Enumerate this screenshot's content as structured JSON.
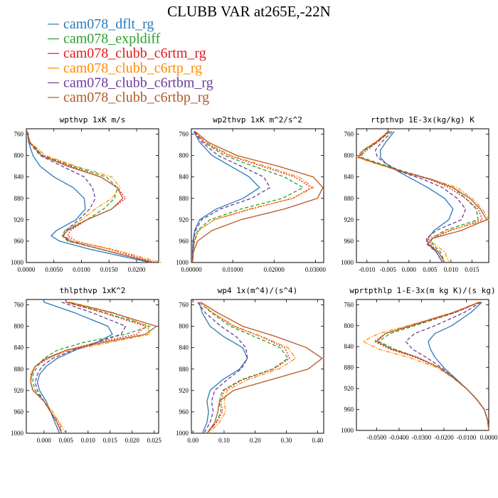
{
  "figure": {
    "title": "CLUBB VAR at265E,-22N",
    "legend": [
      {
        "label": "cam078_dflt_rg",
        "color": "#2b7bb9",
        "dash": "solid"
      },
      {
        "label": "cam078_expldiff",
        "color": "#2ca02c",
        "dash": "dash"
      },
      {
        "label": "cam078_clubb_c6rtm_rg",
        "color": "#e3191b",
        "dash": "dot"
      },
      {
        "label": "cam078_clubb_c6rtp_rg",
        "color": "#ff8c00",
        "dash": "dashdot"
      },
      {
        "label": "cam078_clubb_c6rtbm_rg",
        "color": "#6a3d9a",
        "dash": "dash"
      },
      {
        "label": "cam078_clubb_c6rtbp_rg",
        "color": "#b15928",
        "dash": "solid"
      }
    ]
  },
  "chart_data": [
    {
      "type": "line",
      "title": "wpthvp  1xK m/s",
      "xlim": [
        0,
        0.024
      ],
      "ylim": [
        1000,
        750
      ],
      "xticks": [
        "0.0000",
        "0.0050",
        "0.0100",
        "0.0150",
        "0.0200"
      ],
      "xtick_values": [
        0,
        0.005,
        0.01,
        0.015,
        0.02
      ],
      "yticks": [
        760,
        800,
        840,
        880,
        920,
        960,
        1000
      ],
      "y": [
        755,
        775,
        800,
        820,
        840,
        860,
        880,
        900,
        920,
        940,
        950,
        960,
        975,
        1000
      ],
      "series": [
        {
          "values": [
            0.0002,
            0.0004,
            0.0012,
            0.0025,
            0.005,
            0.0085,
            0.0105,
            0.0107,
            0.009,
            0.0055,
            0.0045,
            0.006,
            0.0115,
            0.0225
          ]
        },
        {
          "values": [
            0.0002,
            0.0006,
            0.003,
            0.0085,
            0.0145,
            0.0165,
            0.016,
            0.014,
            0.011,
            0.007,
            0.0065,
            0.0075,
            0.0135,
            0.023
          ]
        },
        {
          "values": [
            0.0002,
            0.0006,
            0.0028,
            0.008,
            0.0135,
            0.0165,
            0.018,
            0.0155,
            0.011,
            0.008,
            0.0075,
            0.009,
            0.015,
            0.0235
          ]
        },
        {
          "values": [
            0.0002,
            0.0007,
            0.0035,
            0.009,
            0.0155,
            0.017,
            0.0155,
            0.0125,
            0.01,
            0.0075,
            0.0065,
            0.0085,
            0.0155,
            0.0245
          ]
        },
        {
          "values": [
            0.0002,
            0.0005,
            0.0025,
            0.0065,
            0.0105,
            0.012,
            0.0125,
            0.0115,
            0.0095,
            0.0072,
            0.0068,
            0.008,
            0.0135,
            0.0228
          ]
        },
        {
          "values": [
            0.0002,
            0.0006,
            0.0028,
            0.0075,
            0.0135,
            0.0165,
            0.0175,
            0.0155,
            0.011,
            0.0075,
            0.0066,
            0.0078,
            0.0135,
            0.023
          ]
        }
      ]
    },
    {
      "type": "line",
      "title": "wp2thvp  1xK m^2/s^2",
      "xlim": [
        0,
        0.032
      ],
      "ylim": [
        1000,
        750
      ],
      "xticks": [
        "0.00000",
        "0.01000",
        "0.02000",
        "0.03000"
      ],
      "xtick_values": [
        0,
        0.01,
        0.02,
        0.03
      ],
      "yticks": [
        760,
        800,
        840,
        880,
        920,
        960,
        1000
      ],
      "y": [
        755,
        775,
        800,
        820,
        840,
        860,
        880,
        900,
        920,
        940,
        960,
        980,
        1000
      ],
      "series": [
        {
          "values": [
            0.0006,
            0.002,
            0.005,
            0.0095,
            0.014,
            0.0165,
            0.0125,
            0.006,
            0.002,
            0.0008,
            0.0004,
            0.0003,
            0.0003
          ]
        },
        {
          "values": [
            0.0008,
            0.003,
            0.008,
            0.015,
            0.0225,
            0.027,
            0.022,
            0.012,
            0.0045,
            0.0015,
            0.0007,
            0.0004,
            0.0003
          ]
        },
        {
          "values": [
            0.0008,
            0.003,
            0.009,
            0.017,
            0.025,
            0.029,
            0.0245,
            0.0145,
            0.0055,
            0.0018,
            0.0008,
            0.0004,
            0.0003
          ]
        },
        {
          "values": [
            0.0009,
            0.0035,
            0.0095,
            0.018,
            0.026,
            0.0295,
            0.0245,
            0.014,
            0.0055,
            0.0018,
            0.0008,
            0.0004,
            0.0003
          ]
        },
        {
          "values": [
            0.0007,
            0.0025,
            0.0065,
            0.012,
            0.0175,
            0.019,
            0.0145,
            0.007,
            0.0025,
            0.001,
            0.0005,
            0.0003,
            0.0003
          ]
        },
        {
          "values": [
            0.0009,
            0.004,
            0.011,
            0.021,
            0.0295,
            0.0318,
            0.0305,
            0.0225,
            0.012,
            0.005,
            0.0015,
            0.0005,
            0.0003
          ]
        }
      ]
    },
    {
      "type": "line",
      "title": "rtpthvp  1E-3x(kg/kg) K",
      "xlim": [
        -0.0125,
        0.019
      ],
      "ylim": [
        1000,
        750
      ],
      "xticks": [
        "-0.010",
        "-0.005",
        "0.000",
        "0.005",
        "0.010",
        "0.015"
      ],
      "xtick_values": [
        -0.01,
        -0.005,
        0,
        0.005,
        0.01,
        0.015
      ],
      "yticks": [
        760,
        800,
        840,
        880,
        920,
        960,
        1000
      ],
      "y": [
        755,
        775,
        790,
        803,
        815,
        830,
        845,
        860,
        880,
        900,
        920,
        940,
        955,
        965,
        980,
        1000
      ],
      "series": [
        {
          "values": [
            -0.0035,
            -0.0055,
            -0.0068,
            -0.0068,
            -0.0055,
            -0.0025,
            0.001,
            0.0045,
            0.0085,
            0.0105,
            0.0095,
            0.006,
            0.0045,
            0.0045,
            0.0065,
            0.008
          ]
        },
        {
          "values": [
            -0.0045,
            -0.0075,
            -0.0105,
            -0.0115,
            -0.007,
            -0.001,
            0.0055,
            0.0105,
            0.0135,
            0.016,
            0.0165,
            0.0085,
            0.0055,
            0.0055,
            0.0075,
            0.0085
          ]
        },
        {
          "values": [
            -0.0045,
            -0.0075,
            -0.01,
            -0.012,
            -0.0075,
            -0.002,
            0.005,
            0.0095,
            0.0135,
            0.0165,
            0.0175,
            0.01,
            0.0055,
            0.005,
            0.007,
            0.0085
          ]
        },
        {
          "values": [
            -0.005,
            -0.008,
            -0.011,
            -0.0125,
            -0.008,
            -0.0015,
            0.0055,
            0.0115,
            0.015,
            0.0175,
            0.019,
            0.0095,
            0.0045,
            0.006,
            0.0085,
            0.0095
          ]
        },
        {
          "values": [
            -0.004,
            -0.0065,
            -0.008,
            -0.0075,
            -0.0055,
            -0.002,
            0.0035,
            0.008,
            0.0115,
            0.0135,
            0.0125,
            0.0065,
            0.0042,
            0.0042,
            0.0065,
            0.008
          ]
        },
        {
          "values": [
            -0.0048,
            -0.0078,
            -0.0108,
            -0.012,
            -0.0075,
            -0.0015,
            0.0055,
            0.0105,
            0.0145,
            0.017,
            0.0185,
            0.0125,
            0.0055,
            0.0045,
            0.007,
            0.0085
          ]
        }
      ]
    },
    {
      "type": "line",
      "title": "thlpthvp  1xK^2",
      "xlim": [
        -0.004,
        0.026
      ],
      "ylim": [
        1000,
        750
      ],
      "xticks": [
        "0.000",
        "0.005",
        "0.010",
        "0.015",
        "0.020",
        "0.025"
      ],
      "xtick_values": [
        0,
        0.005,
        0.01,
        0.015,
        0.02,
        0.025
      ],
      "yticks": [
        760,
        800,
        840,
        880,
        920,
        960,
        1000
      ],
      "y": [
        755,
        775,
        800,
        815,
        830,
        845,
        860,
        875,
        890,
        905,
        920,
        940,
        960,
        980,
        1000
      ],
      "series": [
        {
          "values": [
            0.0,
            0.007,
            0.0145,
            0.0155,
            0.012,
            0.007,
            0.003,
            0.0005,
            -0.001,
            -0.0015,
            -0.001,
            0.0005,
            0.0015,
            0.0025,
            0.0035
          ]
        },
        {
          "values": [
            0.005,
            0.014,
            0.024,
            0.0185,
            0.009,
            0.003,
            0.0,
            -0.0015,
            -0.0025,
            -0.0025,
            -0.002,
            0.0,
            0.0015,
            0.003,
            0.004
          ]
        },
        {
          "values": [
            0.005,
            0.0135,
            0.023,
            0.021,
            0.012,
            0.005,
            0.001,
            -0.002,
            -0.003,
            -0.003,
            -0.0025,
            0.0,
            0.0015,
            0.0035,
            0.004
          ]
        },
        {
          "values": [
            0.006,
            0.016,
            0.0235,
            0.024,
            0.015,
            0.006,
            0.0005,
            -0.002,
            -0.003,
            -0.003,
            -0.0025,
            0.0,
            0.002,
            0.0035,
            0.005
          ]
        },
        {
          "values": [
            0.004,
            0.011,
            0.0185,
            0.0175,
            0.012,
            0.0065,
            0.002,
            -0.0005,
            -0.0015,
            -0.002,
            -0.0015,
            0.0,
            0.0015,
            0.003,
            0.004
          ]
        },
        {
          "values": [
            0.0055,
            0.0155,
            0.0255,
            0.023,
            0.0135,
            0.005,
            0.0005,
            -0.002,
            -0.0028,
            -0.003,
            -0.0025,
            0.0,
            0.0015,
            0.003,
            0.004
          ]
        }
      ]
    },
    {
      "type": "line",
      "title": "wp4  1x(m^4)/(s^4)",
      "xlim": [
        -0.005,
        0.42
      ],
      "ylim": [
        1000,
        750
      ],
      "xticks": [
        "0.00",
        "0.10",
        "0.20",
        "0.30",
        "0.40"
      ],
      "xtick_values": [
        0,
        0.1,
        0.2,
        0.3,
        0.4
      ],
      "yticks": [
        760,
        800,
        840,
        880,
        920,
        960,
        1000
      ],
      "y": [
        755,
        775,
        800,
        820,
        840,
        860,
        880,
        900,
        920,
        940,
        960,
        980,
        1000
      ],
      "series": [
        {
          "values": [
            0.02,
            0.03,
            0.055,
            0.1,
            0.16,
            0.175,
            0.15,
            0.095,
            0.055,
            0.045,
            0.05,
            0.045,
            0.03
          ]
        },
        {
          "values": [
            0.02,
            0.06,
            0.12,
            0.2,
            0.28,
            0.305,
            0.255,
            0.155,
            0.095,
            0.085,
            0.09,
            0.075,
            0.045
          ]
        },
        {
          "values": [
            0.02,
            0.065,
            0.13,
            0.22,
            0.295,
            0.31,
            0.26,
            0.16,
            0.1,
            0.09,
            0.095,
            0.075,
            0.045
          ]
        },
        {
          "values": [
            0.02,
            0.065,
            0.135,
            0.225,
            0.305,
            0.33,
            0.275,
            0.175,
            0.11,
            0.1,
            0.105,
            0.085,
            0.05
          ]
        },
        {
          "values": [
            0.015,
            0.04,
            0.09,
            0.14,
            0.17,
            0.175,
            0.155,
            0.11,
            0.07,
            0.06,
            0.065,
            0.055,
            0.035
          ]
        },
        {
          "values": [
            0.025,
            0.08,
            0.16,
            0.27,
            0.365,
            0.415,
            0.37,
            0.25,
            0.13,
            0.085,
            0.08,
            0.07,
            0.045
          ]
        }
      ]
    },
    {
      "type": "line",
      "title": "wprtpthlp  1-E-3x(m kg K)/(s kg)",
      "xlim": [
        -0.059,
        0.0
      ],
      "ylim": [
        1000,
        750
      ],
      "xticks": [
        "-0.0500",
        "-0.0400",
        "-0.0300",
        "-0.0200",
        "-0.0100",
        "0.0000"
      ],
      "xtick_values": [
        -0.05,
        -0.04,
        -0.03,
        -0.02,
        -0.01,
        0
      ],
      "yticks": [
        760,
        800,
        840,
        880,
        920,
        960,
        1000
      ],
      "y": [
        755,
        775,
        800,
        815,
        830,
        845,
        860,
        880,
        900,
        920,
        940,
        960,
        980,
        1000
      ],
      "series": [
        {
          "values": [
            -0.003,
            -0.008,
            -0.0165,
            -0.024,
            -0.027,
            -0.026,
            -0.024,
            -0.02,
            -0.015,
            -0.01,
            -0.0055,
            -0.002,
            -0.0005,
            0.0
          ]
        },
        {
          "values": [
            -0.004,
            -0.015,
            -0.033,
            -0.044,
            -0.049,
            -0.042,
            -0.032,
            -0.022,
            -0.0155,
            -0.01,
            -0.0055,
            -0.002,
            -0.0005,
            0.0
          ]
        },
        {
          "values": [
            -0.004,
            -0.015,
            -0.034,
            -0.046,
            -0.051,
            -0.044,
            -0.033,
            -0.022,
            -0.0155,
            -0.01,
            -0.0055,
            -0.002,
            -0.0005,
            0.0
          ]
        },
        {
          "values": [
            -0.0045,
            -0.016,
            -0.036,
            -0.049,
            -0.056,
            -0.049,
            -0.036,
            -0.023,
            -0.016,
            -0.01,
            -0.0055,
            -0.002,
            -0.0005,
            0.0
          ]
        },
        {
          "values": [
            -0.0035,
            -0.011,
            -0.024,
            -0.033,
            -0.037,
            -0.034,
            -0.028,
            -0.021,
            -0.0155,
            -0.01,
            -0.0055,
            -0.002,
            -0.0005,
            0.0
          ]
        },
        {
          "values": [
            -0.004,
            -0.016,
            -0.035,
            -0.046,
            -0.05,
            -0.043,
            -0.032,
            -0.022,
            -0.0155,
            -0.01,
            -0.0055,
            -0.002,
            -0.0005,
            0.0
          ]
        }
      ]
    }
  ]
}
